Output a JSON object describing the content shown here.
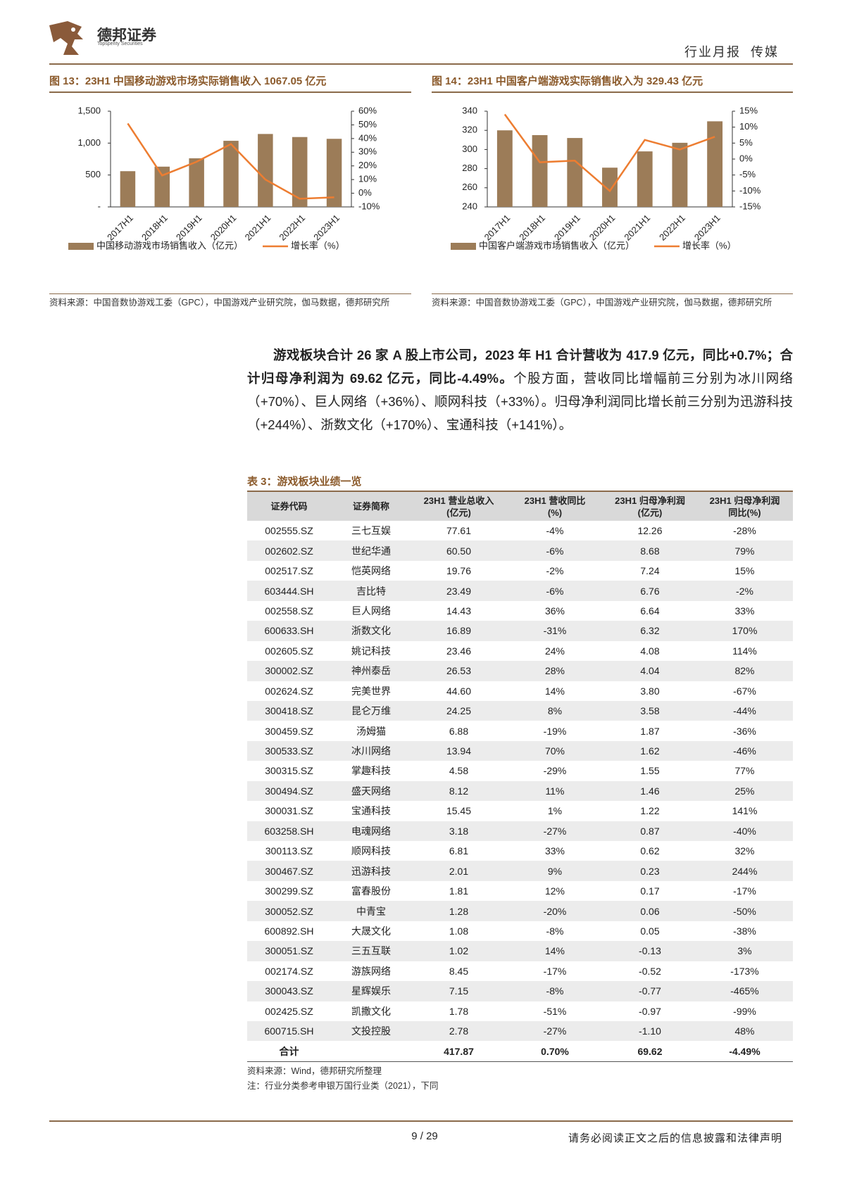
{
  "header": {
    "brand": "德邦证券",
    "brand_en": "Topsperity Securities",
    "report_type": "行业月报",
    "sector": "传媒"
  },
  "chart_data": [
    {
      "type": "combo",
      "title": "图 13：23H1 中国移动游戏市场实际销售收入 1067.05 亿元",
      "categories": [
        "2017H1",
        "2018H1",
        "2019H1",
        "2020H1",
        "2021H1",
        "2022H1",
        "2023H1"
      ],
      "series": [
        {
          "name": "中国移动游戏市场销售收入（亿元）",
          "color": "#9c7c58",
          "type": "bar",
          "values": [
            560,
            631,
            762,
            1036,
            1143,
            1095,
            1067.05
          ]
        },
        {
          "name": "增长率（%）",
          "color": "#ed7d31",
          "type": "line",
          "axis": "y2",
          "values": [
            51,
            13,
            23,
            36,
            10,
            -4,
            -3
          ]
        }
      ],
      "ylim": [
        0,
        1500
      ],
      "yticks": [
        {
          "value": 0,
          "label": "-"
        },
        500,
        {
          "value": 1000,
          "label": "1,000"
        },
        {
          "value": 1500,
          "label": "1,500"
        }
      ],
      "y2lim": [
        -10,
        60
      ],
      "y2ticks": [
        {
          "value": -10,
          "label": "-10%"
        },
        {
          "value": 0,
          "label": "0%"
        },
        {
          "value": 10,
          "label": "10%"
        },
        {
          "value": 20,
          "label": "20%"
        },
        {
          "value": 30,
          "label": "30%"
        },
        {
          "value": 40,
          "label": "40%"
        },
        {
          "value": 50,
          "label": "50%"
        },
        {
          "value": 60,
          "label": "60%"
        }
      ],
      "legend": "bottom",
      "source": "资料来源：中国音数协游戏工委（GPC），中国游戏产业研究院，伽马数据，德邦研究所"
    },
    {
      "type": "combo",
      "title": "图 14：23H1 中国客户端游戏实际销售收入为 329.43 亿元",
      "categories": [
        "2017H1",
        "2018H1",
        "2019H1",
        "2020H1",
        "2021H1",
        "2022H1",
        "2023H1"
      ],
      "series": [
        {
          "name": "中国客户端游戏市场销售收入（亿元）",
          "color": "#9c7c58",
          "type": "bar",
          "values": [
            320,
            315,
            312,
            281,
            298,
            307,
            329.43
          ]
        },
        {
          "name": "增长率（%）",
          "color": "#ed7d31",
          "type": "line",
          "axis": "y2",
          "values": [
            14,
            -1,
            -0.5,
            -10,
            6,
            3,
            7
          ]
        }
      ],
      "ylim": [
        240,
        340
      ],
      "yticks": [
        240,
        260,
        280,
        300,
        320,
        340
      ],
      "y2lim": [
        -15,
        15
      ],
      "y2ticks": [
        {
          "value": -15,
          "label": "-15%"
        },
        {
          "value": -10,
          "label": "-10%"
        },
        {
          "value": -5,
          "label": "-5%"
        },
        {
          "value": 0,
          "label": "0%"
        },
        {
          "value": 5,
          "label": "5%"
        },
        {
          "value": 10,
          "label": "10%"
        },
        {
          "value": 15,
          "label": "15%"
        }
      ],
      "legend": "bottom",
      "source": "资料来源：中国音数协游戏工委（GPC），中国游戏产业研究院，伽马数据，德邦研究所"
    }
  ],
  "paragraph": {
    "bold": "游戏板块合计 26 家 A 股上市公司，2023 年 H1 合计营收为 417.9 亿元，同比+0.7%；合计归母净利润为 69.62 亿元，同比-4.49%。",
    "text": "个股方面，营收同比增幅前三分别为冰川网络（+70%）、巨人网络（+36%）、顺网科技（+33%）。归母净利润同比增长前三分别为迅游科技（+244%）、浙数文化（+170%）、宝通科技（+141%）。"
  },
  "table": {
    "title": "表 3：游戏板块业绩一览",
    "header": [
      "证券代码",
      "证券简称",
      "23H1 营业总收入\n(亿元)",
      "23H1 营收同比\n(%)",
      "23H1 归母净利润\n(亿元)",
      "23H1 归母净利润\n同比(%)"
    ],
    "rows": [
      [
        "002555.SZ",
        "三七互娱",
        "77.61",
        "-4%",
        "12.26",
        "-28%"
      ],
      [
        "002602.SZ",
        "世纪华通",
        "60.50",
        "-6%",
        "8.68",
        "79%"
      ],
      [
        "002517.SZ",
        "恺英网络",
        "19.76",
        "-2%",
        "7.24",
        "15%"
      ],
      [
        "603444.SH",
        "吉比特",
        "23.49",
        "-6%",
        "6.76",
        "-2%"
      ],
      [
        "002558.SZ",
        "巨人网络",
        "14.43",
        "36%",
        "6.64",
        "33%"
      ],
      [
        "600633.SH",
        "浙数文化",
        "16.89",
        "-31%",
        "6.32",
        "170%"
      ],
      [
        "002605.SZ",
        "姚记科技",
        "23.46",
        "24%",
        "4.08",
        "114%"
      ],
      [
        "300002.SZ",
        "神州泰岳",
        "26.53",
        "28%",
        "4.04",
        "82%"
      ],
      [
        "002624.SZ",
        "完美世界",
        "44.60",
        "14%",
        "3.80",
        "-67%"
      ],
      [
        "300418.SZ",
        "昆仑万维",
        "24.25",
        "8%",
        "3.58",
        "-44%"
      ],
      [
        "300459.SZ",
        "汤姆猫",
        "6.88",
        "-19%",
        "1.87",
        "-36%"
      ],
      [
        "300533.SZ",
        "冰川网络",
        "13.94",
        "70%",
        "1.62",
        "-46%"
      ],
      [
        "300315.SZ",
        "掌趣科技",
        "4.58",
        "-29%",
        "1.55",
        "77%"
      ],
      [
        "300494.SZ",
        "盛天网络",
        "8.12",
        "11%",
        "1.46",
        "25%"
      ],
      [
        "300031.SZ",
        "宝通科技",
        "15.45",
        "1%",
        "1.22",
        "141%"
      ],
      [
        "603258.SH",
        "电魂网络",
        "3.18",
        "-27%",
        "0.87",
        "-40%"
      ],
      [
        "300113.SZ",
        "顺网科技",
        "6.81",
        "33%",
        "0.62",
        "32%"
      ],
      [
        "300467.SZ",
        "迅游科技",
        "2.01",
        "9%",
        "0.23",
        "244%"
      ],
      [
        "300299.SZ",
        "富春股份",
        "1.81",
        "12%",
        "0.17",
        "-17%"
      ],
      [
        "300052.SZ",
        "中青宝",
        "1.28",
        "-20%",
        "0.06",
        "-50%"
      ],
      [
        "600892.SH",
        "大晟文化",
        "1.08",
        "-8%",
        "0.05",
        "-38%"
      ],
      [
        "300051.SZ",
        "三五互联",
        "1.02",
        "14%",
        "-0.13",
        "3%"
      ],
      [
        "002174.SZ",
        "游族网络",
        "8.45",
        "-17%",
        "-0.52",
        "-173%"
      ],
      [
        "300043.SZ",
        "星辉娱乐",
        "7.15",
        "-8%",
        "-0.77",
        "-465%"
      ],
      [
        "002425.SZ",
        "凯撒文化",
        "1.78",
        "-51%",
        "-0.97",
        "-99%"
      ],
      [
        "600715.SH",
        "文投控股",
        "2.78",
        "-27%",
        "-1.10",
        "48%"
      ]
    ],
    "total": {
      "label": "合计",
      "values": [
        "417.87",
        "0.70%",
        "69.62",
        "-4.49%"
      ]
    },
    "source": "资料来源：Wind，德邦研究所整理",
    "note": "注：行业分类参考申银万国行业类（2021），下同"
  },
  "footer": {
    "page": "9 / 29",
    "disclaimer": "请务必阅读正文之后的信息披露和法律声明"
  }
}
